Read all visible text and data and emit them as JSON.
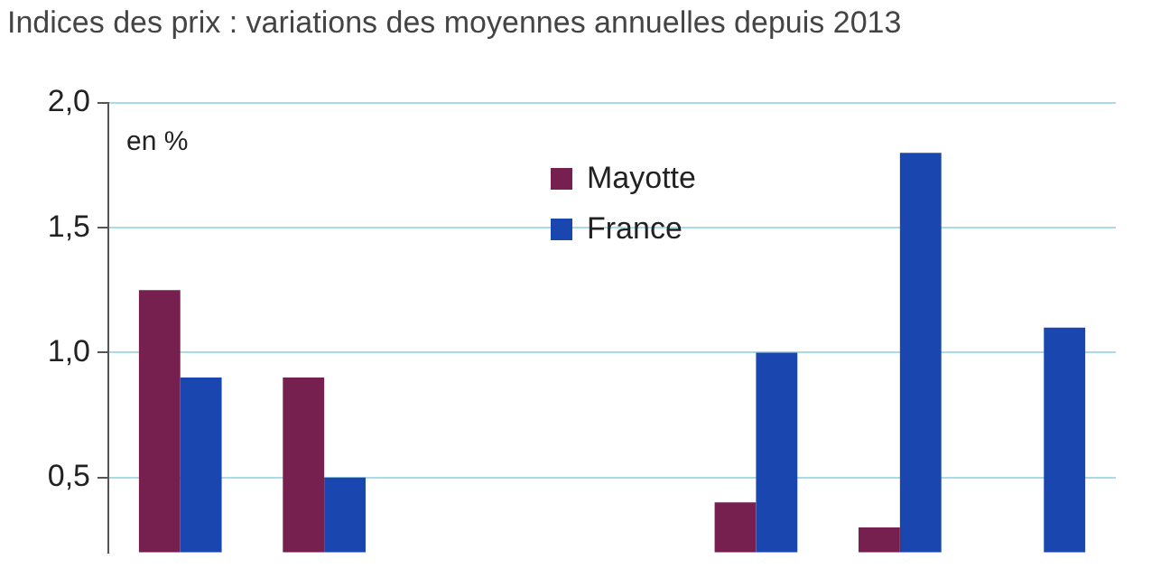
{
  "chart_data": {
    "type": "bar",
    "title": "Indices des prix : variations des moyennes annuelles depuis 2013",
    "annotations": [
      "en %"
    ],
    "categories": [
      null,
      null,
      null,
      null,
      null,
      null,
      null
    ],
    "series": [
      {
        "name": "Mayotte",
        "color": "#75204f",
        "values": [
          1.25,
          0.9,
          null,
          null,
          0.4,
          0.3,
          null
        ]
      },
      {
        "name": "France",
        "color": "#1a46b0",
        "values": [
          0.9,
          0.5,
          null,
          null,
          1.0,
          1.8,
          1.1
        ]
      }
    ],
    "ylim": [
      0.2,
      2.0
    ],
    "yticks": [
      {
        "value": 0.5,
        "label": "0,5"
      },
      {
        "value": 1.0,
        "label": "1,0"
      },
      {
        "value": 1.5,
        "label": "1,5"
      },
      {
        "value": 2.0,
        "label": "2,0"
      }
    ],
    "grid": "y",
    "legend": "top",
    "tick_labels": "y"
  }
}
